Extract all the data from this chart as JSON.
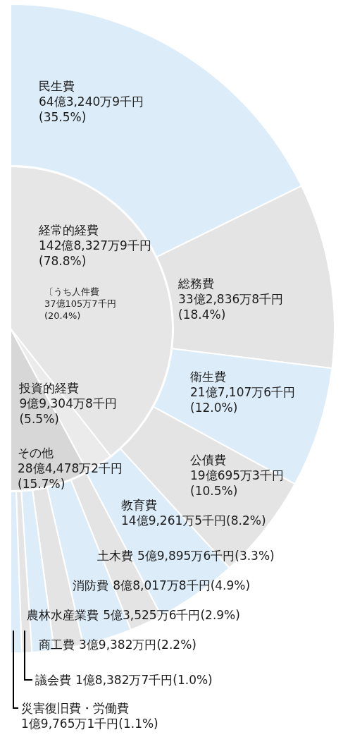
{
  "chart_data": [
    {
      "type": "donut",
      "categories": [
        "民生費",
        "総務費",
        "衛生費",
        "公債費",
        "教育費",
        "土木費",
        "消防費",
        "農林水産業費",
        "商工費",
        "議会費",
        "災害復旧費・労働費"
      ],
      "values": [
        35.5,
        18.4,
        12.0,
        10.5,
        8.2,
        3.3,
        4.9,
        2.9,
        2.2,
        1.0,
        1.1
      ],
      "colors": [
        "#dcedf9",
        "#e4e4e4",
        "#dcedf9",
        "#e4e4e4",
        "#dcedf9",
        "#e4e4e4",
        "#dcedf9",
        "#e4e4e4",
        "#dcedf9",
        "#e4e4e4",
        "#dcedf9"
      ],
      "value_labels": [
        "64億3,240万9千円(35.5%)",
        "33億2,836万8千円(18.4%)",
        "21億7,107万6千円(12.0%)",
        "19億695万3千円(10.5%)",
        "14億9,261万5千円(8.2%)",
        "5億9,895万6千円(3.3%)",
        "8億8,017万8千円(4.9%)",
        "5億3,525万6千円(2.9%)",
        "3億9,382万円(2.2%)",
        "1億8,382万7千円(1.0%)",
        "1億9,765万1千円(1.1%)"
      ]
    },
    {
      "type": "pie",
      "categories": [
        "経常的経費",
        "投資的経費",
        "その他"
      ],
      "values": [
        78.8,
        5.5,
        15.7
      ],
      "colors": [
        "#e6e6e6",
        "#ebebeb",
        "#d7d7d7"
      ],
      "value_labels": [
        "142億8,327万9千円(78.8%)",
        "9億9,304万8千円(5.5%)",
        "28億4,478万2千円(15.7%)"
      ],
      "annotations": [
        "〔うち人件費 37億105万7千円 (20.4%)"
      ]
    }
  ]
}
